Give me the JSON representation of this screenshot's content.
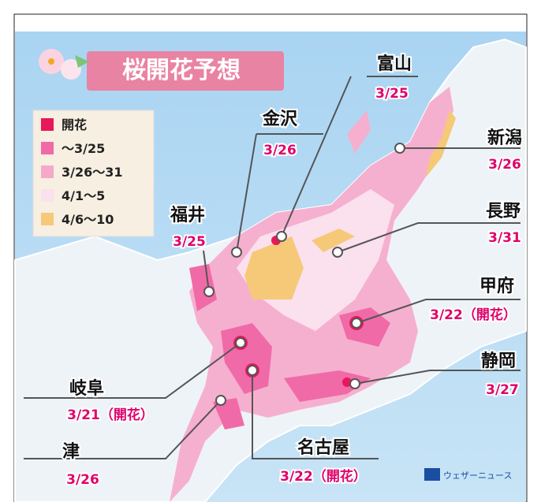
{
  "title": "桜開花予想",
  "legend": {
    "items": [
      {
        "label": "開花",
        "color": "#e8185b"
      },
      {
        "label": "～3/25",
        "color": "#f06aa8"
      },
      {
        "label": "3/26～31",
        "color": "#f6a8c8"
      },
      {
        "label": "4/1～5",
        "color": "#fbe0ee"
      },
      {
        "label": "4/6～10",
        "color": "#f5c978"
      }
    ]
  },
  "cities": [
    {
      "name": "富山",
      "date": "3/25"
    },
    {
      "name": "金沢",
      "date": "3/26"
    },
    {
      "name": "福井",
      "date": "3/25"
    },
    {
      "name": "新潟",
      "date": "3/26"
    },
    {
      "name": "長野",
      "date": "3/31"
    },
    {
      "name": "甲府",
      "date": "3/22（開花）"
    },
    {
      "name": "静岡",
      "date": "3/27"
    },
    {
      "name": "岐阜",
      "date": "3/21（開花）"
    },
    {
      "name": "津",
      "date": "3/26"
    },
    {
      "name": "名古屋",
      "date": "3/22（開花）"
    }
  ],
  "logo": "ウェザーニュース"
}
